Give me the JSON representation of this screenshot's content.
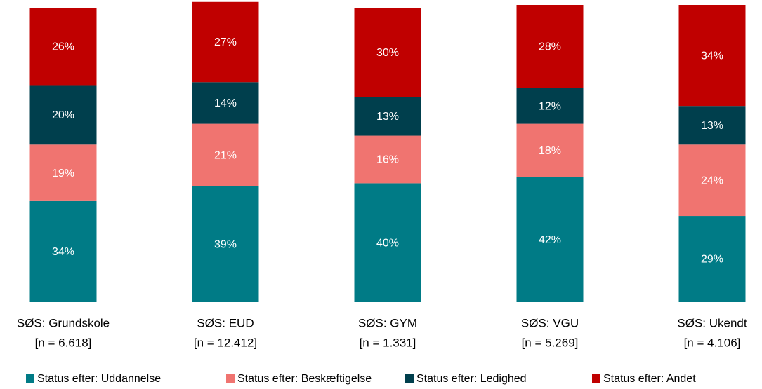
{
  "chart_data": {
    "type": "stacked_bar",
    "categories": [
      "SØS: Grundskole",
      "SØS: EUD",
      "SØS: GYM",
      "SØS: VGU",
      "SØS: Ukendt"
    ],
    "sample_sizes": [
      "[n = 6.618]",
      "[n = 12.412]",
      "[n = 1.331]",
      "[n = 5.269]",
      "[n = 4.106]"
    ],
    "series": [
      {
        "name": "Status efter: Uddannelse",
        "color": "#007b86",
        "values": [
          34,
          39,
          40,
          42,
          29
        ],
        "value_labels": [
          "34%",
          "39%",
          "40%",
          "42%",
          "29%"
        ]
      },
      {
        "name": "Status efter: Beskæftigelse",
        "color": "#f07470",
        "values": [
          19,
          21,
          16,
          18,
          24
        ],
        "value_labels": [
          "19%",
          "21%",
          "16%",
          "18%",
          "24%"
        ]
      },
      {
        "name": "Status efter: Ledighed",
        "color": "#003f4d",
        "values": [
          20,
          14,
          13,
          12,
          13
        ],
        "value_labels": [
          "20%",
          "14%",
          "13%",
          "12%",
          "13%"
        ]
      },
      {
        "name": "Status efter: Andet",
        "color": "#c00000",
        "values": [
          26,
          27,
          30,
          28,
          34
        ],
        "value_labels": [
          "26%",
          "27%",
          "30%",
          "28%",
          "34%"
        ]
      }
    ],
    "ylim": [
      0,
      100
    ],
    "legend": "bottom"
  }
}
